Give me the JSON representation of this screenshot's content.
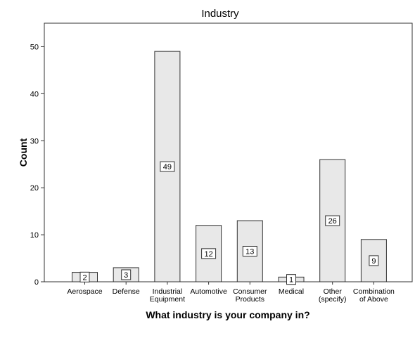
{
  "chart_data": {
    "type": "bar",
    "title": "Industry",
    "xlabel": "What industry is your company in?",
    "ylabel": "Count",
    "categories": [
      "Aerospace",
      "Defense",
      "Industrial Equipment",
      "Automotive",
      "Consumer Products",
      "Medical",
      "Other (specify)",
      "Combination of Above"
    ],
    "category_lines": [
      [
        "Aerospace"
      ],
      [
        "Defense"
      ],
      [
        "Industrial",
        "Equipment"
      ],
      [
        "Automotive"
      ],
      [
        "Consumer",
        "Products"
      ],
      [
        "Medical"
      ],
      [
        "Other",
        "(specify)"
      ],
      [
        "Combination",
        "of Above"
      ]
    ],
    "values": [
      2,
      3,
      49,
      12,
      13,
      1,
      26,
      9
    ],
    "ylim": [
      0,
      55
    ],
    "yticks": [
      0,
      10,
      20,
      30,
      40,
      50
    ],
    "grid": false,
    "data_labels": true,
    "colors": {
      "bar_fill": "#e8e8e8",
      "bar_stroke": "#333333",
      "axis": "#333333",
      "text": "#000000"
    }
  }
}
